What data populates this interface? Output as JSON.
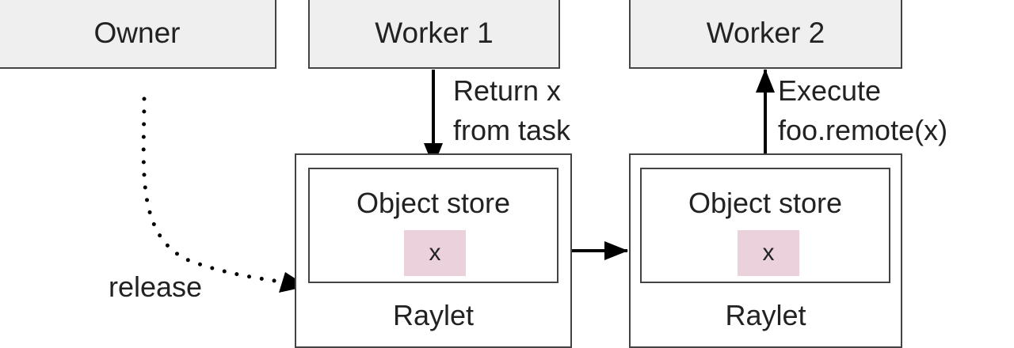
{
  "nodes": {
    "owner": "Owner",
    "worker1": "Worker 1",
    "worker2": "Worker 2"
  },
  "raylet_left": {
    "store_title": "Object store",
    "object": "x",
    "label": "Raylet"
  },
  "raylet_right": {
    "store_title": "Object store",
    "object": "x",
    "label": "Raylet"
  },
  "edges": {
    "return_line1": "Return x",
    "return_line2": "from task",
    "execute_line1": "Execute",
    "execute_line2": "foo.remote(x)",
    "release": "release"
  }
}
